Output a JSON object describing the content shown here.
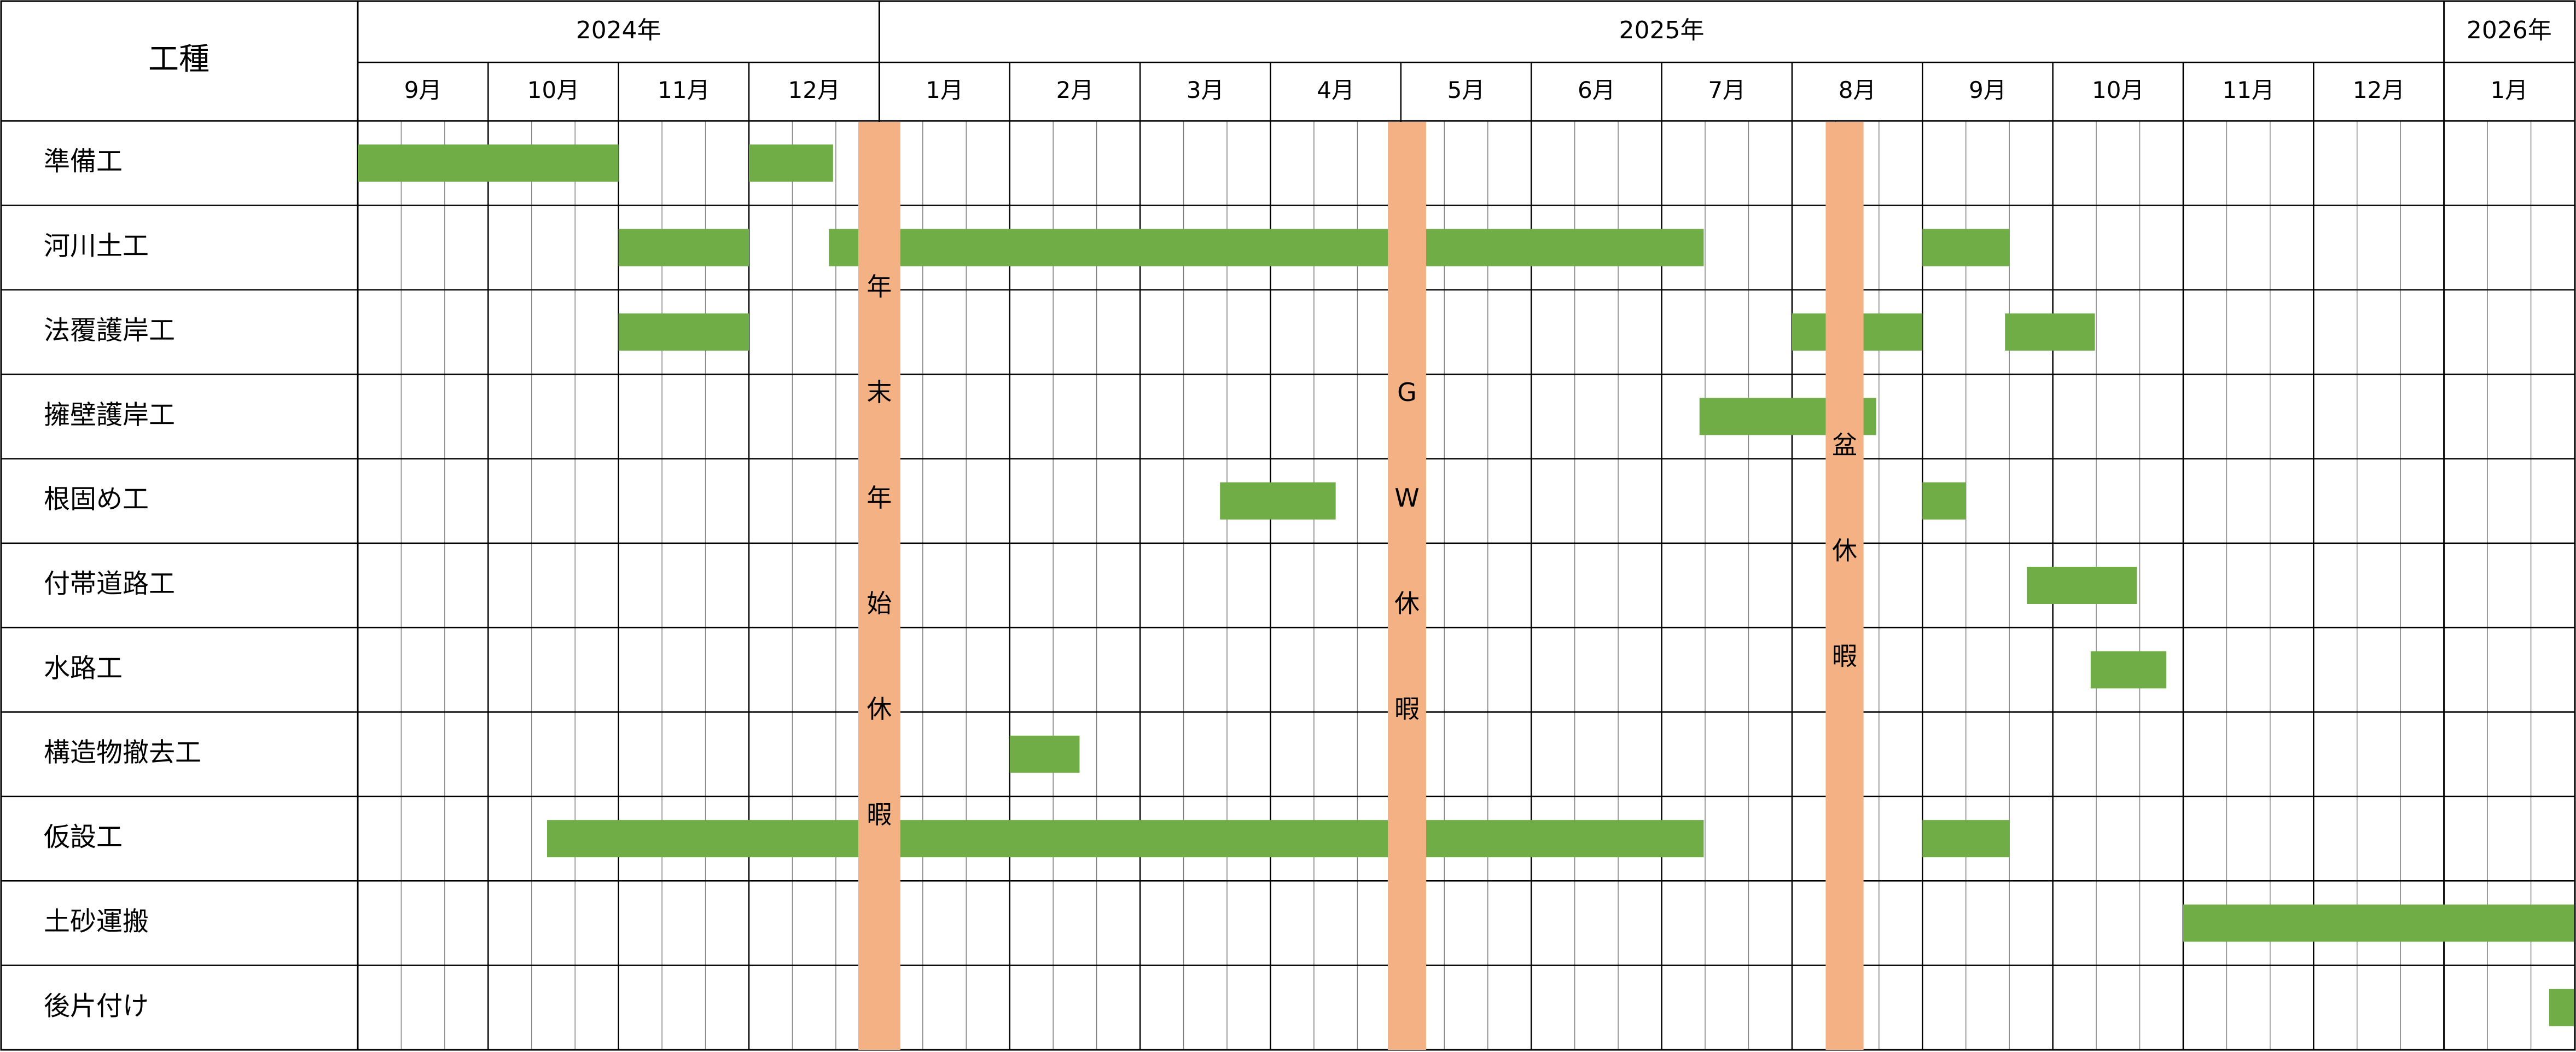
{
  "header": {
    "label_column": "工種"
  },
  "colors": {
    "task_bar": "#70ad47",
    "holiday_band": "#f4b183",
    "grid_major": "#000000",
    "grid_minor": "#808080"
  },
  "chart_data": {
    "type": "gantt",
    "years": [
      {
        "label": "2024年",
        "start": "2024-09",
        "end": "2024-12"
      },
      {
        "label": "2025年",
        "start": "2025-01",
        "end": "2025-12"
      },
      {
        "label": "2026年",
        "start": "2026-01",
        "end": "2026-01"
      }
    ],
    "months": [
      "9月",
      "10月",
      "11月",
      "12月",
      "1月",
      "2月",
      "3月",
      "4月",
      "5月",
      "6月",
      "7月",
      "8月",
      "9月",
      "10月",
      "11月",
      "12月",
      "1月"
    ],
    "subdivisions_per_month": 3,
    "tasks": [
      {
        "name": "準備工",
        "bars": [
          {
            "start": "2024-09-01",
            "end": "2024-10-31"
          },
          {
            "start": "2024-12-01",
            "end": "2024-12-20"
          }
        ]
      },
      {
        "name": "河川土工",
        "bars": [
          {
            "start": "2024-11-01",
            "end": "2024-11-30"
          },
          {
            "start": "2024-12-20",
            "end": "2025-07-10"
          },
          {
            "start": "2025-09-01",
            "end": "2025-09-20"
          }
        ]
      },
      {
        "name": "法覆護岸工",
        "bars": [
          {
            "start": "2024-11-01",
            "end": "2024-11-30"
          },
          {
            "start": "2025-08-01",
            "end": "2025-08-31"
          },
          {
            "start": "2025-09-20",
            "end": "2025-10-10"
          }
        ]
      },
      {
        "name": "擁壁護岸工",
        "bars": [
          {
            "start": "2025-07-10",
            "end": "2025-08-20"
          }
        ]
      },
      {
        "name": "根固め工",
        "bars": [
          {
            "start": "2025-03-20",
            "end": "2025-04-15"
          },
          {
            "start": "2025-09-01",
            "end": "2025-09-10"
          }
        ]
      },
      {
        "name": "付帯道路工",
        "bars": [
          {
            "start": "2025-09-25",
            "end": "2025-10-20"
          }
        ]
      },
      {
        "name": "水路工",
        "bars": [
          {
            "start": "2025-10-10",
            "end": "2025-10-27"
          }
        ]
      },
      {
        "name": "構造物撤去工",
        "bars": [
          {
            "start": "2025-02-01",
            "end": "2025-02-15"
          }
        ]
      },
      {
        "name": "仮設工",
        "bars": [
          {
            "start": "2024-10-15",
            "end": "2025-07-10"
          },
          {
            "start": "2025-09-01",
            "end": "2025-09-20"
          }
        ]
      },
      {
        "name": "土砂運搬",
        "bars": [
          {
            "start": "2025-11-01",
            "end": "2026-01-31"
          }
        ]
      },
      {
        "name": "後片付け",
        "bars": [
          {
            "start": "2026-01-26",
            "end": "2026-01-31"
          }
        ]
      }
    ],
    "holidays": [
      {
        "label": "年末年始休暇",
        "start": "2024-12-27",
        "end": "2025-01-05"
      },
      {
        "label": "GW休暇",
        "start": "2025-04-28",
        "end": "2025-05-06"
      },
      {
        "label": "盆休暇",
        "start": "2025-08-09",
        "end": "2025-08-17"
      }
    ]
  }
}
